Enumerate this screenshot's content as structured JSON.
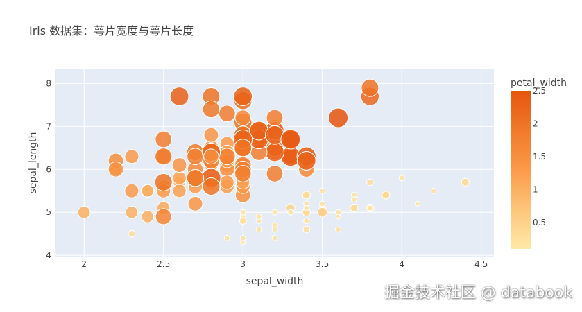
{
  "chart_data": {
    "type": "scatter",
    "title": "Iris 数据集：萼片宽度与萼片长度",
    "xlabel": "sepal_width",
    "ylabel": "sepal_length",
    "xlim": [
      1.82,
      4.58
    ],
    "ylim": [
      3.97,
      8.33
    ],
    "x_ticks": [
      2,
      2.5,
      3,
      3.5,
      4,
      4.5
    ],
    "y_ticks": [
      4,
      5,
      6,
      7,
      8
    ],
    "x_tick_labels": [
      "2",
      "2.5",
      "3",
      "3.5",
      "4",
      "4.5"
    ],
    "y_tick_labels": [
      "4",
      "5",
      "6",
      "7",
      "8"
    ],
    "colorbar": {
      "title": "petal_width",
      "range": [
        0.1,
        2.5
      ],
      "ticks": [
        0.5,
        1,
        1.5,
        2,
        2.5
      ],
      "tick_labels": [
        "0.5",
        "1",
        "1.5",
        "2",
        "2.5"
      ],
      "colors": [
        "#fee9a8",
        "#fdc67a",
        "#fb9a4a",
        "#f07a2a",
        "#e6550d"
      ]
    },
    "size_by": "petal_width",
    "points": [
      [
        3.5,
        5.1,
        0.2
      ],
      [
        3.0,
        4.9,
        0.2
      ],
      [
        3.2,
        4.7,
        0.2
      ],
      [
        3.1,
        4.6,
        0.2
      ],
      [
        3.6,
        5.0,
        0.2
      ],
      [
        3.9,
        5.4,
        0.4
      ],
      [
        3.4,
        4.6,
        0.3
      ],
      [
        3.4,
        5.0,
        0.2
      ],
      [
        2.9,
        4.4,
        0.2
      ],
      [
        3.1,
        4.9,
        0.1
      ],
      [
        3.7,
        5.4,
        0.2
      ],
      [
        3.4,
        4.8,
        0.2
      ],
      [
        3.0,
        4.8,
        0.1
      ],
      [
        3.0,
        4.3,
        0.1
      ],
      [
        4.0,
        5.8,
        0.2
      ],
      [
        4.4,
        5.7,
        0.4
      ],
      [
        3.9,
        5.4,
        0.4
      ],
      [
        3.5,
        5.1,
        0.3
      ],
      [
        3.8,
        5.7,
        0.3
      ],
      [
        3.8,
        5.1,
        0.3
      ],
      [
        3.4,
        5.4,
        0.2
      ],
      [
        3.7,
        5.1,
        0.4
      ],
      [
        3.6,
        4.6,
        0.2
      ],
      [
        3.3,
        5.1,
        0.5
      ],
      [
        3.4,
        4.8,
        0.2
      ],
      [
        3.0,
        5.0,
        0.2
      ],
      [
        3.4,
        5.0,
        0.4
      ],
      [
        3.5,
        5.2,
        0.2
      ],
      [
        3.4,
        5.2,
        0.2
      ],
      [
        3.2,
        4.7,
        0.2
      ],
      [
        3.1,
        4.8,
        0.2
      ],
      [
        3.4,
        5.4,
        0.4
      ],
      [
        4.1,
        5.2,
        0.1
      ],
      [
        4.2,
        5.5,
        0.2
      ],
      [
        3.1,
        4.9,
        0.2
      ],
      [
        3.2,
        5.0,
        0.2
      ],
      [
        3.5,
        5.5,
        0.2
      ],
      [
        3.6,
        4.9,
        0.1
      ],
      [
        3.0,
        4.4,
        0.2
      ],
      [
        3.4,
        5.1,
        0.2
      ],
      [
        3.5,
        5.0,
        0.3
      ],
      [
        2.3,
        4.5,
        0.3
      ],
      [
        3.2,
        4.4,
        0.2
      ],
      [
        3.5,
        5.0,
        0.6
      ],
      [
        3.8,
        5.1,
        0.4
      ],
      [
        3.0,
        4.8,
        0.3
      ],
      [
        3.8,
        5.1,
        0.2
      ],
      [
        3.2,
        4.6,
        0.2
      ],
      [
        3.7,
        5.3,
        0.2
      ],
      [
        3.3,
        5.0,
        0.2
      ],
      [
        3.2,
        7.0,
        1.4
      ],
      [
        3.2,
        6.4,
        1.5
      ],
      [
        3.1,
        6.9,
        1.5
      ],
      [
        2.3,
        5.5,
        1.3
      ],
      [
        2.8,
        6.5,
        1.5
      ],
      [
        2.8,
        5.7,
        1.3
      ],
      [
        3.3,
        6.3,
        1.6
      ],
      [
        2.4,
        4.9,
        1.0
      ],
      [
        2.9,
        6.6,
        1.3
      ],
      [
        2.7,
        5.2,
        1.4
      ],
      [
        2.0,
        5.0,
        1.0
      ],
      [
        3.0,
        5.9,
        1.5
      ],
      [
        2.2,
        6.0,
        1.0
      ],
      [
        2.9,
        6.1,
        1.4
      ],
      [
        2.9,
        5.6,
        1.3
      ],
      [
        3.1,
        6.7,
        1.4
      ],
      [
        3.0,
        5.6,
        1.5
      ],
      [
        2.7,
        5.8,
        1.0
      ],
      [
        2.2,
        6.2,
        1.5
      ],
      [
        2.5,
        5.6,
        1.1
      ],
      [
        3.2,
        5.9,
        1.8
      ],
      [
        2.8,
        6.1,
        1.3
      ],
      [
        2.5,
        6.3,
        1.5
      ],
      [
        2.8,
        6.1,
        1.2
      ],
      [
        2.9,
        6.4,
        1.3
      ],
      [
        3.0,
        6.6,
        1.4
      ],
      [
        2.8,
        6.8,
        1.4
      ],
      [
        3.0,
        6.7,
        1.7
      ],
      [
        2.9,
        6.0,
        1.5
      ],
      [
        2.6,
        5.7,
        1.0
      ],
      [
        2.4,
        5.5,
        1.1
      ],
      [
        2.4,
        5.5,
        1.0
      ],
      [
        2.7,
        5.8,
        1.2
      ],
      [
        2.7,
        6.0,
        1.6
      ],
      [
        3.0,
        5.4,
        1.5
      ],
      [
        3.4,
        6.0,
        1.6
      ],
      [
        3.1,
        6.7,
        1.5
      ],
      [
        2.3,
        6.3,
        1.3
      ],
      [
        3.0,
        5.6,
        1.3
      ],
      [
        2.5,
        5.5,
        1.3
      ],
      [
        2.6,
        5.5,
        1.2
      ],
      [
        3.0,
        6.1,
        1.4
      ],
      [
        2.6,
        5.8,
        1.2
      ],
      [
        2.3,
        5.0,
        1.0
      ],
      [
        2.7,
        5.6,
        1.3
      ],
      [
        3.0,
        5.7,
        1.2
      ],
      [
        2.9,
        5.7,
        1.3
      ],
      [
        2.9,
        6.2,
        1.3
      ],
      [
        2.5,
        5.1,
        1.1
      ],
      [
        2.8,
        5.7,
        1.3
      ],
      [
        3.3,
        6.3,
        2.5
      ],
      [
        2.7,
        5.8,
        1.9
      ],
      [
        3.0,
        7.1,
        2.1
      ],
      [
        2.9,
        6.3,
        1.8
      ],
      [
        3.0,
        6.5,
        2.2
      ],
      [
        3.0,
        7.6,
        2.1
      ],
      [
        2.5,
        4.9,
        1.7
      ],
      [
        2.9,
        7.3,
        1.8
      ],
      [
        2.5,
        6.7,
        1.8
      ],
      [
        3.6,
        7.2,
        2.5
      ],
      [
        3.2,
        6.5,
        2.0
      ],
      [
        2.7,
        6.4,
        1.9
      ],
      [
        3.0,
        6.8,
        2.1
      ],
      [
        2.5,
        5.7,
        2.0
      ],
      [
        2.8,
        5.8,
        2.4
      ],
      [
        3.2,
        6.4,
        2.3
      ],
      [
        3.0,
        6.5,
        1.8
      ],
      [
        3.8,
        7.7,
        2.2
      ],
      [
        2.6,
        7.7,
        2.3
      ],
      [
        2.2,
        6.0,
        1.5
      ],
      [
        3.2,
        6.9,
        2.3
      ],
      [
        2.8,
        5.6,
        2.0
      ],
      [
        2.8,
        7.7,
        2.0
      ],
      [
        2.7,
        6.3,
        1.8
      ],
      [
        3.3,
        6.7,
        2.1
      ],
      [
        3.2,
        7.2,
        1.8
      ],
      [
        2.8,
        6.2,
        1.8
      ],
      [
        3.0,
        6.1,
        1.8
      ],
      [
        2.8,
        6.4,
        2.1
      ],
      [
        3.0,
        7.2,
        1.6
      ],
      [
        2.8,
        7.4,
        1.9
      ],
      [
        3.8,
        7.9,
        2.0
      ],
      [
        2.8,
        6.4,
        2.2
      ],
      [
        2.8,
        6.3,
        1.5
      ],
      [
        2.6,
        6.1,
        1.4
      ],
      [
        3.0,
        7.7,
        2.3
      ],
      [
        3.4,
        6.3,
        2.4
      ],
      [
        3.1,
        6.4,
        1.8
      ],
      [
        3.0,
        6.0,
        1.8
      ],
      [
        3.1,
        6.9,
        2.1
      ],
      [
        3.1,
        6.7,
        2.4
      ],
      [
        3.1,
        6.9,
        2.3
      ],
      [
        2.7,
        5.8,
        1.9
      ],
      [
        3.2,
        6.8,
        2.3
      ],
      [
        3.3,
        6.7,
        2.5
      ],
      [
        3.0,
        6.7,
        2.3
      ],
      [
        2.5,
        6.3,
        1.9
      ],
      [
        3.0,
        6.5,
        2.0
      ],
      [
        3.4,
        6.2,
        2.3
      ],
      [
        3.0,
        5.9,
        1.8
      ]
    ]
  },
  "watermark": "掘金技术社区 @ databook"
}
